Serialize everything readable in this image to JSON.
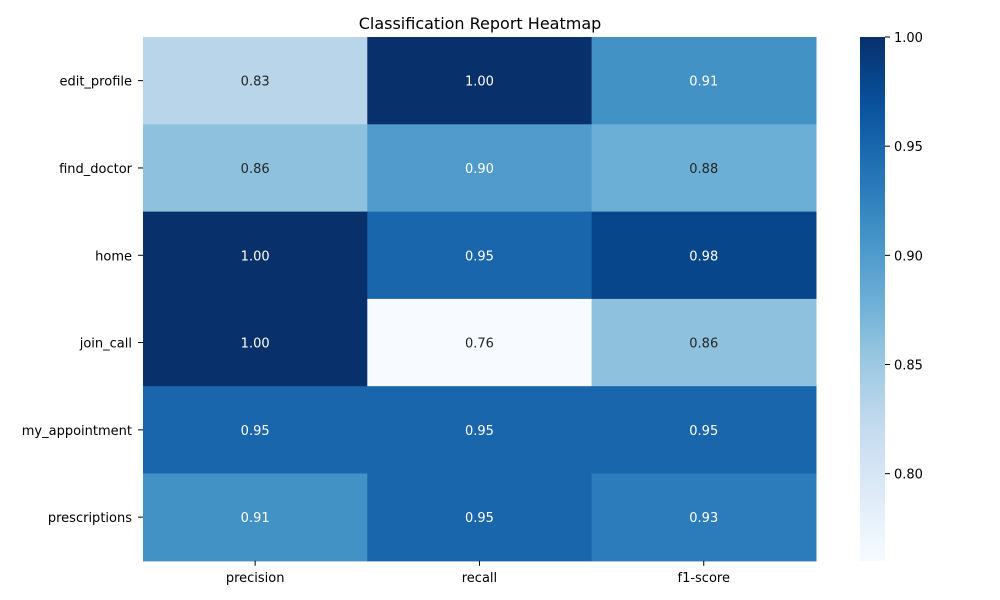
{
  "chart_data": {
    "type": "heatmap",
    "title": "Classification Report Heatmap",
    "xlabel": "",
    "ylabel": "",
    "rows": [
      "edit_profile",
      "find_doctor",
      "home",
      "join_call",
      "my_appointment",
      "prescriptions"
    ],
    "columns": [
      "precision",
      "recall",
      "f1-score"
    ],
    "values": [
      [
        0.83,
        1.0,
        0.91
      ],
      [
        0.86,
        0.9,
        0.88
      ],
      [
        1.0,
        0.95,
        0.98
      ],
      [
        1.0,
        0.76,
        0.86
      ],
      [
        0.95,
        0.95,
        0.95
      ],
      [
        0.91,
        0.95,
        0.93
      ]
    ],
    "annotations": [
      [
        "0.83",
        "1.00",
        "0.91"
      ],
      [
        "0.86",
        "0.90",
        "0.88"
      ],
      [
        "1.00",
        "0.95",
        "0.98"
      ],
      [
        "1.00",
        "0.76",
        "0.86"
      ],
      [
        "0.95",
        "0.95",
        "0.95"
      ],
      [
        "0.91",
        "0.95",
        "0.93"
      ]
    ],
    "colormap": "Blues",
    "vmin": 0.76,
    "vmax": 1.0,
    "colorbar": {
      "ticks": [
        0.8,
        0.85,
        0.9,
        0.95,
        1.0
      ],
      "tick_labels": [
        "0.80",
        "0.85",
        "0.90",
        "0.95",
        "1.00"
      ]
    },
    "grid": false
  }
}
